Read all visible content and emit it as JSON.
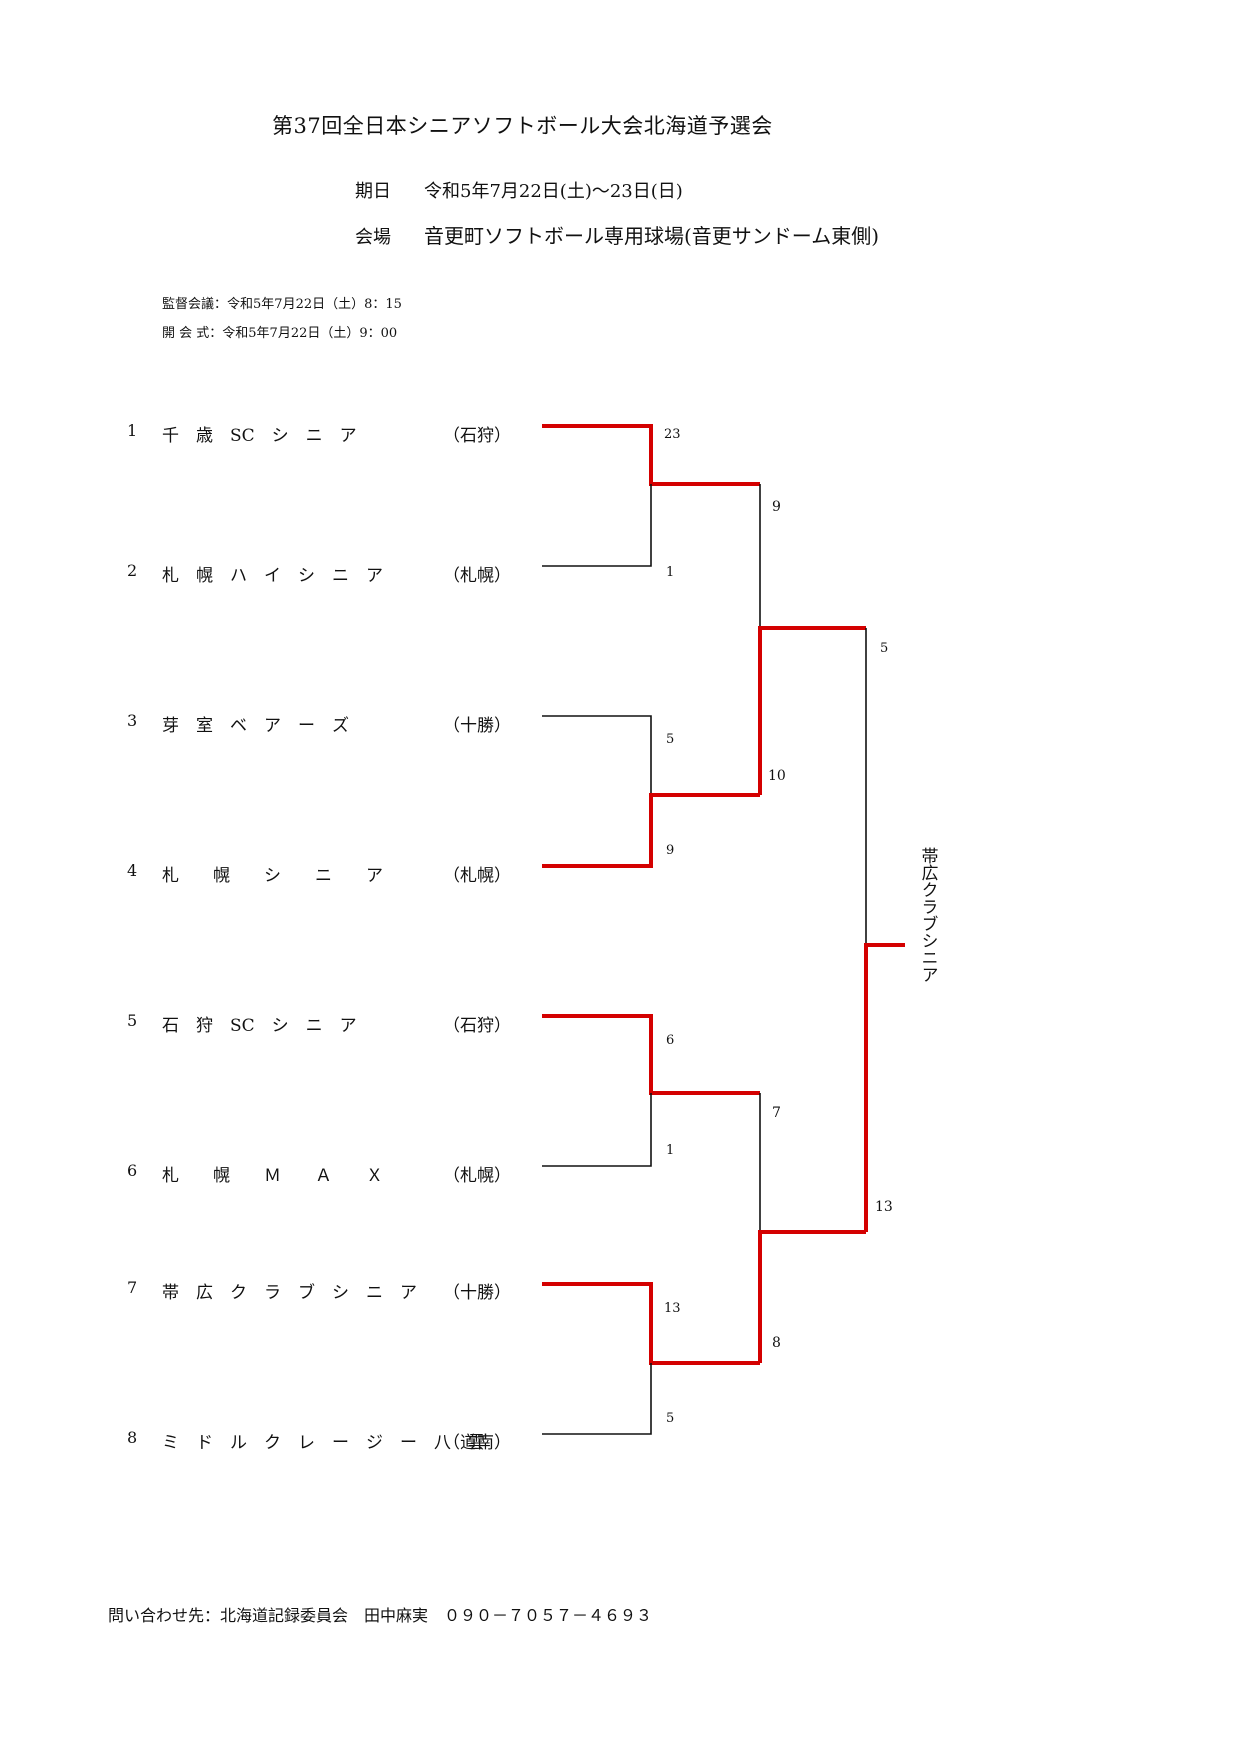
{
  "title": "第37回全日本シニアソフトボール大会北海道予選会",
  "date": {
    "label": "期日",
    "value": "令和5年7月22日(土)～23日(日)"
  },
  "venue": {
    "label": "会場",
    "value": "音更町ソフトボール専用球場(音更サンドーム東側)"
  },
  "meetings": [
    {
      "label": "監督会議",
      "value": "令和5年7月22日（土）8：15"
    },
    {
      "label": "開 会 式",
      "value": "令和5年7月22日（土）9：00"
    }
  ],
  "teams": [
    {
      "no": "1",
      "name": "千　歳　SC　シ　ニ　ア",
      "region": "（石狩）"
    },
    {
      "no": "2",
      "name": "札　幌　ハ　イ　シ　ニ　ア",
      "region": "（札幌）"
    },
    {
      "no": "3",
      "name": "芽　室　ベ　ア　ー　ズ",
      "region": "（十勝）"
    },
    {
      "no": "4",
      "name": "札　　幌　　シ　　ニ　　ア",
      "region": "（札幌）"
    },
    {
      "no": "5",
      "name": "石　狩　SC　シ　ニ　ア",
      "region": "（石狩）"
    },
    {
      "no": "6",
      "name": "札　　幌　　Ｍ　　Ａ　　Ｘ",
      "region": "（札幌）"
    },
    {
      "no": "7",
      "name": "帯　広　ク　ラ　ブ　シ　ニ　ア",
      "region": "（十勝）"
    },
    {
      "no": "8",
      "name": "ミ　ド　ル　ク　レ　ー　ジ　ー　八　雲",
      "region": "（道南）"
    }
  ],
  "scores": {
    "r1": [
      "23",
      "1",
      "5",
      "9",
      "6",
      "1",
      "13",
      "5"
    ],
    "r2": [
      "9",
      "10",
      "7",
      "8"
    ],
    "r3": [
      "5",
      "13"
    ]
  },
  "winner": "帯広クラブシニア",
  "contact": "問い合わせ先：北海道記録委員会　田中麻実　０９０－７０５７－４６９３",
  "colors": {
    "win_line": "#d40000",
    "lose_line": "#111111"
  }
}
